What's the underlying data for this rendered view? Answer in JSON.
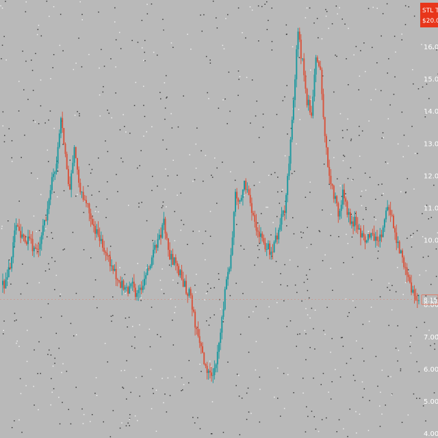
{
  "colors": {
    "background": "#b9b9b9",
    "up": "#1f9aa0",
    "down": "#d8553e",
    "axis_text": "#ffffff",
    "badge_bg": "#e8361b",
    "badge_text": "#ffffff",
    "price_line": "#e27a66",
    "noise_dark": "#3a3a3a",
    "noise_light": "#f0f0f0"
  },
  "header_badge": {
    "symbol": "STL T",
    "price": "$20.0"
  },
  "last_price_label": "8.15",
  "chart_data": {
    "type": "candlestick",
    "ylim": [
      4.0,
      17.0
    ],
    "y_ticks": [
      "16.00",
      "15.00",
      "14.00",
      "13.00",
      "12.00",
      "11.00",
      "10.00",
      "8.00",
      "7.00",
      "6.00",
      "5.00",
      "4.00"
    ],
    "title": "",
    "xlabel": "",
    "ylabel": "",
    "close_series": [
      8.6,
      8.8,
      9.4,
      10.5,
      10.2,
      9.8,
      10.0,
      9.6,
      9.8,
      10.4,
      10.9,
      11.8,
      12.4,
      13.8,
      12.5,
      11.6,
      12.9,
      11.7,
      11.4,
      11.0,
      10.6,
      10.2,
      9.9,
      9.6,
      9.3,
      9.0,
      8.7,
      8.5,
      8.4,
      8.6,
      8.3,
      8.5,
      8.8,
      9.3,
      9.8,
      10.1,
      10.5,
      9.6,
      9.4,
      9.2,
      8.8,
      8.5,
      8.2,
      7.4,
      6.8,
      6.2,
      5.8,
      5.9,
      6.5,
      7.6,
      8.7,
      9.5,
      11.5,
      11.2,
      11.8,
      11.4,
      10.8,
      10.2,
      10.0,
      9.8,
      9.6,
      10.0,
      10.5,
      11.0,
      12.5,
      14.5,
      16.4,
      15.5,
      14.3,
      14.0,
      15.5,
      15.2,
      13.2,
      12.0,
      11.4,
      10.8,
      11.4,
      10.9,
      10.5,
      10.6,
      10.2,
      9.9,
      10.2,
      10.0,
      9.8,
      10.4,
      11.1,
      10.6,
      10.0,
      9.6,
      9.0,
      8.6,
      8.3,
      8.15
    ]
  }
}
